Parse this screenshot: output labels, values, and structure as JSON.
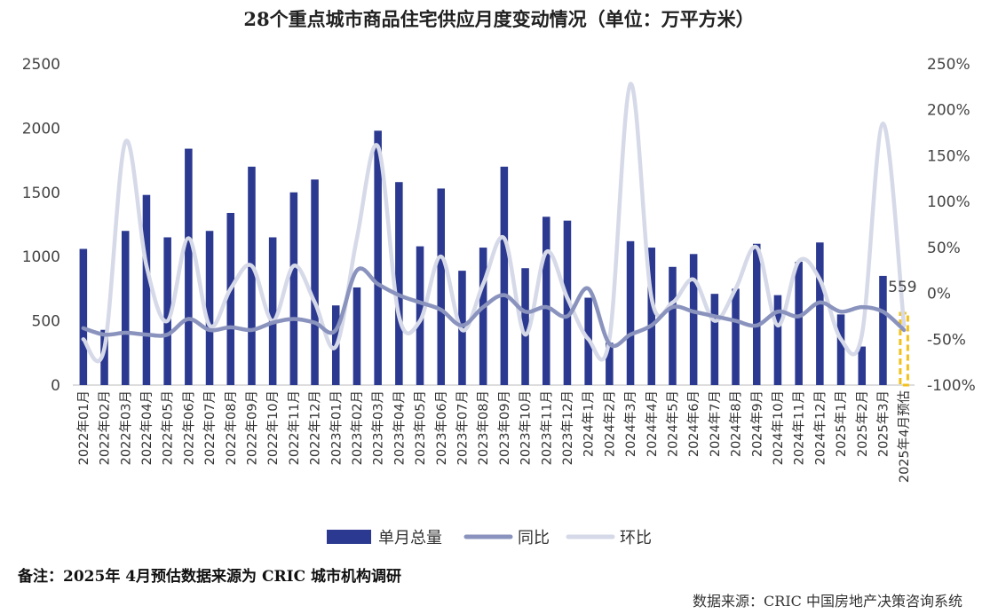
{
  "title": "28个重点城市商品住宅供应月度变动情况（单位：万平方米）",
  "note": "备注：2025年 4月预估数据来源为 CRIC 城市机构调研",
  "source": "数据来源：CRIC 中国房地产决策咨询系统",
  "chart_data": {
    "type": "bar",
    "title": "28个重点城市商品住宅供应月度变动情况（单位：万平方米）",
    "categories": [
      "2022年01月",
      "2022年02月",
      "2022年03月",
      "2022年04月",
      "2022年05月",
      "2022年06月",
      "2022年07月",
      "2022年08月",
      "2022年09月",
      "2022年10月",
      "2022年11月",
      "2022年12月",
      "2023年01月",
      "2023年02月",
      "2023年03月",
      "2023年04月",
      "2023年05月",
      "2023年06月",
      "2023年07月",
      "2023年08月",
      "2023年09月",
      "2023年10月",
      "2023年11月",
      "2023年12月",
      "2024年1月",
      "2024年2月",
      "2024年3月",
      "2024年4月",
      "2024年5月",
      "2024年6月",
      "2024年7月",
      "2024年8月",
      "2024年9月",
      "2024年10月",
      "2024年11月",
      "2024年12月",
      "2025年1月",
      "2025年2月",
      "2025年3月",
      "2025年4月预估"
    ],
    "left_axis": {
      "ylim": [
        0,
        2500
      ],
      "ticks": [
        "0",
        "500",
        "1000",
        "1500",
        "2000",
        "2500"
      ]
    },
    "right_axis": {
      "ylim": [
        -100,
        250
      ],
      "ticks": [
        "-100%",
        "-50%",
        "0%",
        "50%",
        "100%",
        "150%",
        "200%",
        "250%"
      ]
    },
    "series": [
      {
        "name": "单月总量",
        "type": "bar",
        "axis": "left",
        "color": "#2b3990",
        "values": [
          1060,
          430,
          1200,
          1480,
          1150,
          1840,
          1200,
          1340,
          1700,
          1150,
          1500,
          1600,
          620,
          760,
          1980,
          1580,
          1080,
          1530,
          890,
          1070,
          1700,
          910,
          1310,
          1280,
          680,
          330,
          1120,
          1070,
          920,
          1020,
          710,
          750,
          1100,
          700,
          960,
          1110,
          550,
          300,
          850,
          559
        ]
      },
      {
        "name": "同比",
        "type": "line",
        "axis": "right",
        "color": "#8a93bd",
        "values": [
          -38,
          -45,
          -43,
          -45,
          -45,
          -28,
          -40,
          -37,
          -40,
          -32,
          -28,
          -32,
          -40,
          25,
          10,
          -2,
          -10,
          -18,
          -35,
          -15,
          -2,
          -20,
          -15,
          -25,
          5,
          -55,
          -45,
          -35,
          -15,
          -20,
          -25,
          -30,
          -35,
          -20,
          -25,
          -10,
          -20,
          -15,
          -20,
          -40
        ]
      },
      {
        "name": "环比",
        "type": "line",
        "axis": "right",
        "color": "#d6d9e8",
        "values": [
          -50,
          -60,
          165,
          30,
          -30,
          60,
          -35,
          5,
          30,
          -30,
          30,
          -10,
          -58,
          60,
          160,
          -25,
          -30,
          40,
          -40,
          10,
          60,
          -45,
          45,
          -5,
          -50,
          -50,
          228,
          -5,
          -10,
          15,
          -30,
          5,
          50,
          -35,
          35,
          15,
          -50,
          -45,
          185,
          -35
        ]
      }
    ],
    "highlight": {
      "category": "2025年4月预估",
      "value": 559,
      "label": "559",
      "color": "#f2c11b"
    },
    "legend": [
      "单月总量",
      "同比",
      "环比"
    ],
    "legend_position": "bottom",
    "grid": false
  }
}
